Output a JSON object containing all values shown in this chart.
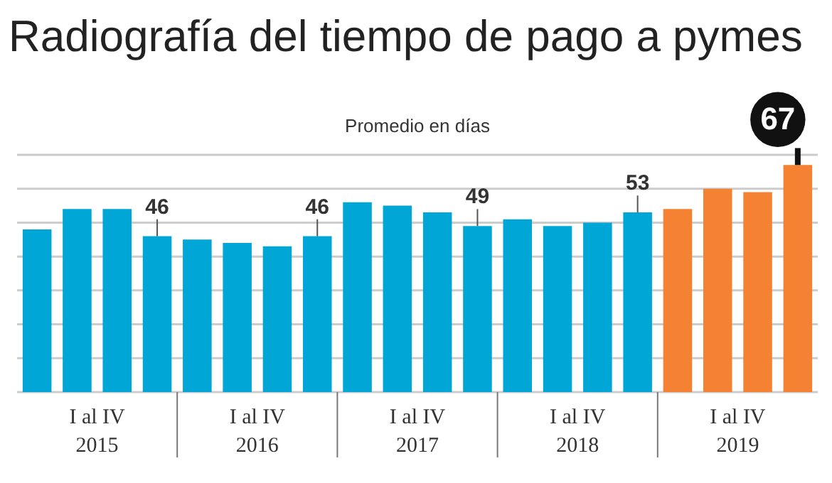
{
  "chart_data": {
    "type": "bar",
    "title": "Radiografía del tiempo de pago a pymes",
    "subtitle": "Promedio en días",
    "categories": [
      null,
      null,
      null,
      null,
      null,
      null,
      null,
      null,
      null,
      null,
      null,
      null,
      null,
      null,
      null,
      null,
      null,
      null,
      null,
      null
    ],
    "values": [
      48,
      54,
      54,
      46,
      45,
      44,
      43,
      46,
      56,
      55,
      53,
      49,
      51,
      49,
      50,
      53,
      54,
      60,
      59,
      67
    ],
    "value_labels": [
      null,
      null,
      null,
      "46",
      null,
      null,
      null,
      "46",
      null,
      null,
      null,
      "49",
      null,
      null,
      null,
      "53",
      null,
      null,
      null,
      "67"
    ],
    "colors": [
      "#00a6d6",
      "#00a6d6",
      "#00a6d6",
      "#00a6d6",
      "#00a6d6",
      "#00a6d6",
      "#00a6d6",
      "#00a6d6",
      "#00a6d6",
      "#00a6d6",
      "#00a6d6",
      "#00a6d6",
      "#00a6d6",
      "#00a6d6",
      "#00a6d6",
      "#00a6d6",
      "#f58232",
      "#f58232",
      "#f58232",
      "#f58232"
    ],
    "annotations": [
      "I al IV\n2015",
      "I al IV\n2016",
      "I al IV\n2017",
      "I al IV\n2018",
      "I al IV\n2019"
    ],
    "ylim": [
      0,
      70
    ],
    "yticks": [
      {
        "value": 0,
        "label": null
      },
      {
        "value": 10,
        "label": null
      },
      {
        "value": 20,
        "label": null
      },
      {
        "value": 30,
        "label": null
      },
      {
        "value": 40,
        "label": null
      },
      {
        "value": 50,
        "label": null
      },
      {
        "value": 60,
        "label": null
      },
      {
        "value": 70,
        "label": null
      }
    ],
    "grid": "y",
    "tick_labels": false
  }
}
